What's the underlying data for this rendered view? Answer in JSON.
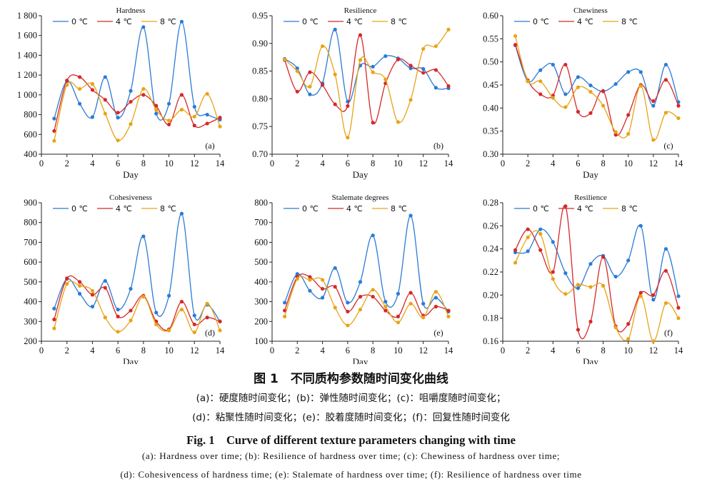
{
  "legend_labels": [
    "0 ℃",
    "4 ℃",
    "8 ℃"
  ],
  "colors": {
    "series0": "#2b7bd6",
    "series1": "#d62828",
    "series2": "#e8a317"
  },
  "chart_data": [
    {
      "type": "line",
      "title": "Hardness",
      "panel_label": "(a)",
      "xlabel": "Day",
      "ylabel": "",
      "x": [
        1,
        2,
        3,
        4,
        5,
        6,
        7,
        8,
        9,
        10,
        11,
        12,
        13,
        14
      ],
      "xlim": [
        0,
        14
      ],
      "xticks": [
        0,
        2,
        4,
        6,
        8,
        10,
        12,
        14
      ],
      "ylim": [
        400,
        1800
      ],
      "yticks": [
        400,
        600,
        800,
        1000,
        1200,
        1400,
        1600,
        1800
      ],
      "ytick_labels": [
        "400",
        "600",
        "800",
        "1 000",
        "1 200",
        "1 400",
        "1 600",
        "1 800"
      ],
      "series": [
        {
          "name": "0 ℃",
          "values": [
            760,
            1140,
            910,
            775,
            1180,
            770,
            1040,
            1685,
            810,
            910,
            1740,
            880,
            800,
            750
          ]
        },
        {
          "name": "4 ℃",
          "values": [
            635,
            1145,
            1180,
            1050,
            950,
            820,
            930,
            1000,
            890,
            700,
            1000,
            690,
            710,
            770
          ]
        },
        {
          "name": "8 ℃",
          "values": [
            535,
            1100,
            1060,
            1110,
            810,
            540,
            705,
            1060,
            850,
            740,
            850,
            780,
            1010,
            680
          ]
        }
      ]
    },
    {
      "type": "line",
      "title": "Resilience",
      "panel_label": "(b)",
      "xlabel": "Day",
      "ylabel": "",
      "x": [
        1,
        2,
        3,
        4,
        5,
        6,
        7,
        8,
        9,
        10,
        11,
        12,
        13,
        14
      ],
      "xlim": [
        0,
        14
      ],
      "xticks": [
        0,
        2,
        4,
        6,
        8,
        10,
        12,
        14
      ],
      "ylim": [
        0.7,
        0.95
      ],
      "yticks": [
        0.7,
        0.75,
        0.8,
        0.85,
        0.9,
        0.95
      ],
      "ytick_labels": [
        "0.70",
        "0.75",
        "0.80",
        "0.85",
        "0.90",
        "0.95"
      ],
      "series": [
        {
          "name": "0 ℃",
          "values": [
            0.872,
            0.855,
            0.808,
            0.828,
            0.925,
            0.795,
            0.86,
            0.858,
            0.877,
            0.873,
            0.855,
            0.854,
            0.82,
            0.819
          ]
        },
        {
          "name": "4 ℃",
          "values": [
            0.87,
            0.813,
            0.848,
            0.825,
            0.79,
            0.787,
            0.915,
            0.757,
            0.828,
            0.871,
            0.86,
            0.847,
            0.852,
            0.823
          ]
        },
        {
          "name": "8 ℃",
          "values": [
            0.871,
            0.85,
            0.822,
            0.895,
            0.844,
            0.73,
            0.87,
            0.848,
            0.835,
            0.758,
            0.798,
            0.89,
            0.895,
            0.925
          ]
        }
      ]
    },
    {
      "type": "line",
      "title": "Chewiness",
      "panel_label": "(c)",
      "xlabel": "Day",
      "ylabel": "",
      "x": [
        1,
        2,
        3,
        4,
        5,
        6,
        7,
        8,
        9,
        10,
        11,
        12,
        13,
        14
      ],
      "xlim": [
        0,
        14
      ],
      "xticks": [
        0,
        2,
        4,
        6,
        8,
        10,
        12,
        14
      ],
      "ylim": [
        0.3,
        0.6
      ],
      "yticks": [
        0.3,
        0.35,
        0.4,
        0.45,
        0.5,
        0.55,
        0.6
      ],
      "ytick_labels": [
        "0.30",
        "0.35",
        "0.40",
        "0.45",
        "0.50",
        "0.55",
        "0.60"
      ],
      "series": [
        {
          "name": "0 ℃",
          "values": [
            0.536,
            0.458,
            0.482,
            0.494,
            0.43,
            0.467,
            0.449,
            0.436,
            0.452,
            0.478,
            0.478,
            0.405,
            0.494,
            0.413
          ]
        },
        {
          "name": "4 ℃",
          "values": [
            0.537,
            0.46,
            0.43,
            0.427,
            0.494,
            0.392,
            0.389,
            0.437,
            0.342,
            0.385,
            0.45,
            0.415,
            0.461,
            0.405
          ]
        },
        {
          "name": "8 ℃",
          "values": [
            0.556,
            0.458,
            0.458,
            0.422,
            0.402,
            0.445,
            0.435,
            0.405,
            0.348,
            0.344,
            0.448,
            0.331,
            0.39,
            0.378
          ]
        }
      ]
    },
    {
      "type": "line",
      "title": "Cohesiveness",
      "panel_label": "(d)",
      "xlabel": "Day",
      "ylabel": "",
      "x": [
        1,
        2,
        3,
        4,
        5,
        6,
        7,
        8,
        9,
        10,
        11,
        12,
        13,
        14
      ],
      "xlim": [
        0,
        14
      ],
      "xticks": [
        0,
        2,
        4,
        6,
        8,
        10,
        12,
        14
      ],
      "ylim": [
        200,
        900
      ],
      "yticks": [
        200,
        300,
        400,
        500,
        600,
        700,
        800,
        900
      ],
      "ytick_labels": [
        "200",
        "300",
        "400",
        "500",
        "600",
        "700",
        "800",
        "900"
      ],
      "series": [
        {
          "name": "0 ℃",
          "values": [
            365,
            515,
            440,
            375,
            505,
            360,
            465,
            730,
            345,
            430,
            845,
            330,
            385,
            300
          ]
        },
        {
          "name": "4 ℃",
          "values": [
            310,
            518,
            500,
            435,
            470,
            325,
            355,
            430,
            300,
            260,
            400,
            285,
            320,
            300
          ]
        },
        {
          "name": "8 ℃",
          "values": [
            265,
            490,
            480,
            455,
            320,
            248,
            305,
            425,
            285,
            255,
            360,
            245,
            390,
            255
          ]
        }
      ]
    },
    {
      "type": "line",
      "title": "Stalemate degrees",
      "panel_label": "(e)",
      "xlabel": "Day",
      "ylabel": "",
      "x": [
        1,
        2,
        3,
        4,
        5,
        6,
        7,
        8,
        9,
        10,
        11,
        12,
        13,
        14
      ],
      "xlim": [
        0,
        14
      ],
      "xticks": [
        0,
        2,
        4,
        6,
        8,
        10,
        12,
        14
      ],
      "ylim": [
        100,
        800
      ],
      "yticks": [
        100,
        200,
        300,
        400,
        500,
        600,
        700,
        800
      ],
      "ytick_labels": [
        "100",
        "200",
        "300",
        "400",
        "500",
        "600",
        "700",
        "800"
      ],
      "series": [
        {
          "name": "0 ℃",
          "values": [
            295,
            440,
            355,
            320,
            470,
            295,
            400,
            635,
            300,
            340,
            735,
            290,
            320,
            250
          ]
        },
        {
          "name": "4 ℃",
          "values": [
            255,
            425,
            425,
            365,
            375,
            250,
            325,
            325,
            255,
            225,
            345,
            230,
            275,
            255
          ]
        },
        {
          "name": "8 ℃",
          "values": [
            225,
            415,
            410,
            410,
            270,
            180,
            260,
            360,
            275,
            195,
            290,
            220,
            350,
            225
          ]
        }
      ]
    },
    {
      "type": "line",
      "title": "Resilience",
      "panel_label": "(f)",
      "xlabel": "Day",
      "ylabel": "",
      "x": [
        1,
        2,
        3,
        4,
        5,
        6,
        7,
        8,
        9,
        10,
        11,
        12,
        13,
        14
      ],
      "xlim": [
        0,
        14
      ],
      "xticks": [
        0,
        2,
        4,
        6,
        8,
        10,
        12,
        14
      ],
      "ylim": [
        0.16,
        0.28
      ],
      "yticks": [
        0.16,
        0.18,
        0.2,
        0.22,
        0.24,
        0.26,
        0.28
      ],
      "ytick_labels": [
        "0.16",
        "0.18",
        "0.20",
        "0.22",
        "0.24",
        "0.26",
        "0.28"
      ],
      "series": [
        {
          "name": "0 ℃",
          "values": [
            0.237,
            0.238,
            0.257,
            0.246,
            0.219,
            0.206,
            0.227,
            0.234,
            0.216,
            0.23,
            0.26,
            0.196,
            0.24,
            0.199
          ]
        },
        {
          "name": "4 ℃",
          "values": [
            0.239,
            0.257,
            0.239,
            0.22,
            0.277,
            0.17,
            0.177,
            0.233,
            0.173,
            0.175,
            0.202,
            0.2,
            0.221,
            0.189
          ]
        },
        {
          "name": "8 ℃",
          "values": [
            0.228,
            0.25,
            0.253,
            0.214,
            0.201,
            0.209,
            0.207,
            0.208,
            0.172,
            0.162,
            0.199,
            0.16,
            0.193,
            0.18
          ]
        }
      ]
    }
  ],
  "caption": {
    "title_zh": "图 1　不同质构参数随时间变化曲线",
    "line1_zh": "(a)：硬度随时间变化；(b)：弹性随时间变化；(c)：咀嚼度随时间变化；",
    "line2_zh": "(d)：粘聚性随时间变化；(e)：胶着度随时间变化；(f)：回复性随时间变化",
    "title_en": "Fig. 1　Curve of different texture parameters changing with time",
    "line1_en": "(a): Hardness over time; (b): Resilience of hardness over time; (c): Chewiness of hardness over time;",
    "line2_en": "(d): Cohesivencess of hardness time; (e): Stalemate of hardness over time; (f): Resilience of hardness over time"
  }
}
